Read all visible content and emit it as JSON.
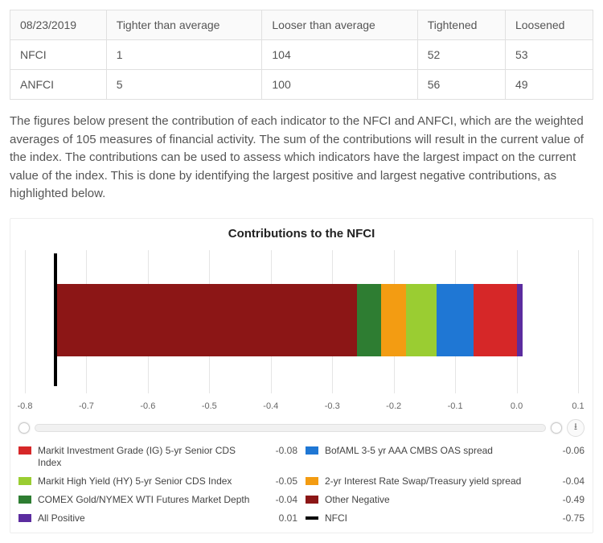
{
  "table": {
    "columns": [
      "08/23/2019",
      "Tighter than average",
      "Looser than average",
      "Tightened",
      "Loosened"
    ],
    "rows": [
      [
        "NFCI",
        "1",
        "104",
        "52",
        "53"
      ],
      [
        "ANFCI",
        "5",
        "100",
        "56",
        "49"
      ]
    ]
  },
  "description": "The figures below present the contribution of each indicator to the NFCI and ANFCI, which are the weighted averages of 105 measures of financial activity. The sum of the contributions will result in the current value of the index. The contributions can be used to assess which indicators have the largest impact on the current value of the index. This is done by identifying the largest positive and largest negative contributions, as highlighted below.",
  "chart": {
    "title": "Contributions to the NFCI",
    "type": "stacked-bar-horizontal",
    "background_color": "#ffffff",
    "grid_color": "#e5e5e5",
    "xlim": [
      -0.8,
      0.1
    ],
    "xtick_step": 0.1,
    "xticks": [
      -0.8,
      -0.7,
      -0.6,
      -0.5,
      -0.4,
      -0.3,
      -0.2,
      -0.1,
      0.0,
      0.1
    ],
    "nfci_marker": {
      "value": -0.75,
      "color": "#000000",
      "width": 4
    },
    "segments": [
      {
        "name": "Other Negative",
        "start": -0.75,
        "end": -0.26,
        "color": "#8c1616"
      },
      {
        "name": "COMEX Gold/NYMEX WTI Futures Market Depth",
        "start": -0.26,
        "end": -0.22,
        "color": "#2e7d32"
      },
      {
        "name": "2-yr Interest Rate Swap/Treasury yield spread",
        "start": -0.22,
        "end": -0.18,
        "color": "#f39c12"
      },
      {
        "name": "Markit High Yield (HY) 5-yr Senior CDS Index",
        "start": -0.18,
        "end": -0.13,
        "color": "#9acd32"
      },
      {
        "name": "BofAML 3-5 yr AAA CMBS OAS spread",
        "start": -0.13,
        "end": -0.07,
        "color": "#1f77d4"
      },
      {
        "name": "Markit Investment Grade (IG) 5-yr Senior CDS Index",
        "start": -0.07,
        "end": 0.01,
        "color": "#d62728"
      },
      {
        "name": "All Positive",
        "start": 0.0,
        "end": 0.01,
        "color": "#5b2c9f"
      }
    ],
    "title_fontsize": 15,
    "tick_fontsize": 11
  },
  "legend": {
    "left": [
      {
        "label": "Markit Investment Grade (IG) 5-yr Senior CDS Index",
        "value": "-0.08",
        "color": "#d62728"
      },
      {
        "label": "Markit High Yield (HY) 5-yr Senior CDS Index",
        "value": "-0.05",
        "color": "#9acd32"
      },
      {
        "label": "COMEX Gold/NYMEX WTI Futures Market Depth",
        "value": "-0.04",
        "color": "#2e7d32"
      },
      {
        "label": "All Positive",
        "value": "0.01",
        "color": "#5b2c9f"
      }
    ],
    "right": [
      {
        "label": "BofAML 3-5 yr AAA CMBS OAS spread",
        "value": "-0.06",
        "color": "#1f77d4"
      },
      {
        "label": "2-yr Interest Rate Swap/Treasury yield spread",
        "value": "-0.04",
        "color": "#f39c12"
      },
      {
        "label": "Other Negative",
        "value": "-0.49",
        "color": "#8c1616"
      },
      {
        "label": "NFCI",
        "value": "-0.75",
        "color": "#000000",
        "is_line": true
      }
    ]
  },
  "download_icon": "⭳"
}
